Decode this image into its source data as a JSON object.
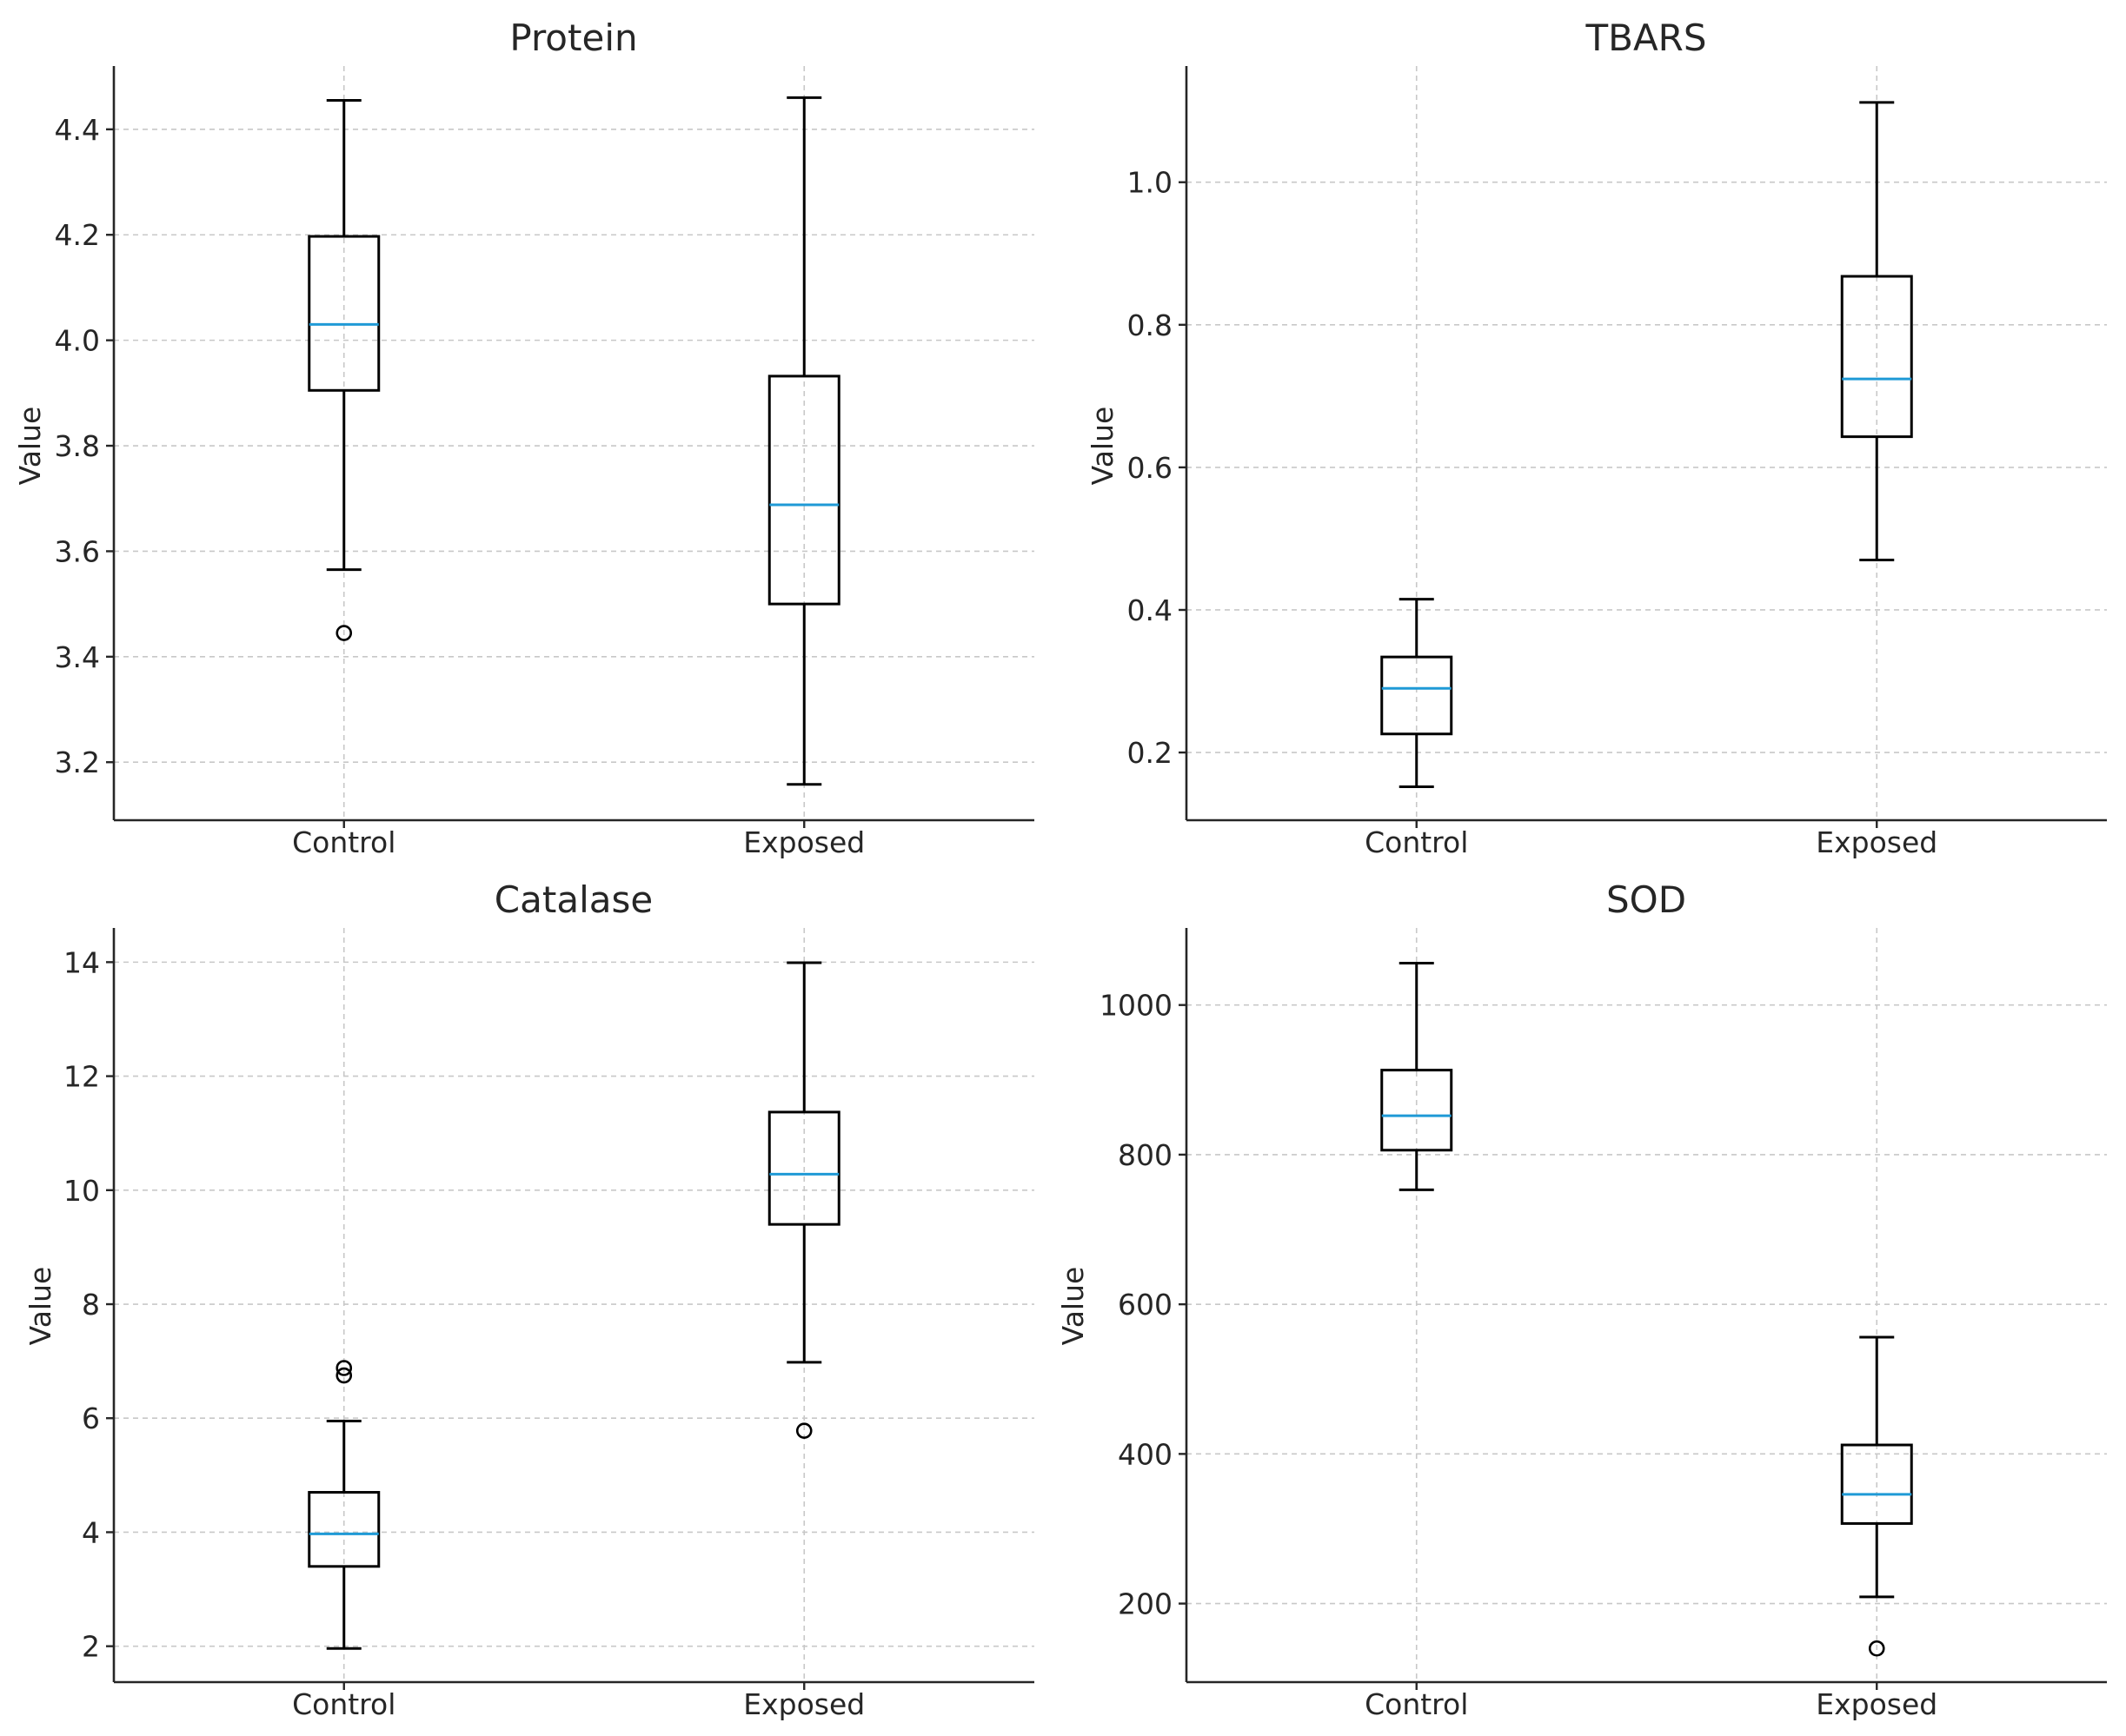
{
  "colors": {
    "median": "#1f9ad6",
    "box": "#000000",
    "grid": "#c8c8c8",
    "text": "#262626"
  },
  "chart_data": [
    {
      "type": "box",
      "title": "Protein",
      "xlabel": "",
      "ylabel": "Value",
      "categories": [
        "Control",
        "Exposed"
      ],
      "ylim": [
        3.09,
        4.52
      ],
      "yticks": [
        3.2,
        3.4,
        3.6,
        3.8,
        4.0,
        4.2,
        4.4
      ],
      "ytick_labels": [
        "3.2",
        "3.4",
        "3.6",
        "3.8",
        "4.0",
        "4.2",
        "4.4"
      ],
      "grid": true,
      "boxes": [
        {
          "category": "Control",
          "whisker_low": 3.565,
          "q1": 3.905,
          "median": 4.03,
          "q3": 4.197,
          "whisker_high": 4.455,
          "fliers": [
            3.445
          ]
        },
        {
          "category": "Exposed",
          "whisker_low": 3.158,
          "q1": 3.5,
          "median": 3.688,
          "q3": 3.932,
          "whisker_high": 4.46,
          "fliers": []
        }
      ]
    },
    {
      "type": "box",
      "title": "TBARS",
      "xlabel": "",
      "ylabel": "Value",
      "categories": [
        "Control",
        "Exposed"
      ],
      "ylim": [
        0.105,
        1.163
      ],
      "yticks": [
        0.2,
        0.4,
        0.6,
        0.8,
        1.0
      ],
      "ytick_labels": [
        "0.2",
        "0.4",
        "0.6",
        "0.8",
        "1.0"
      ],
      "grid": true,
      "boxes": [
        {
          "category": "Control",
          "whisker_low": 0.152,
          "q1": 0.226,
          "median": 0.29,
          "q3": 0.334,
          "whisker_high": 0.415,
          "fliers": []
        },
        {
          "category": "Exposed",
          "whisker_low": 0.47,
          "q1": 0.643,
          "median": 0.724,
          "q3": 0.868,
          "whisker_high": 1.112,
          "fliers": []
        }
      ]
    },
    {
      "type": "box",
      "title": "Catalase",
      "xlabel": "",
      "ylabel": "Value",
      "categories": [
        "Control",
        "Exposed"
      ],
      "ylim": [
        1.37,
        14.6
      ],
      "yticks": [
        2,
        4,
        6,
        8,
        10,
        12,
        14
      ],
      "ytick_labels": [
        "2",
        "4",
        "6",
        "8",
        "10",
        "12",
        "14"
      ],
      "grid": true,
      "boxes": [
        {
          "category": "Control",
          "whisker_low": 1.96,
          "q1": 3.4,
          "median": 3.97,
          "q3": 4.7,
          "whisker_high": 5.95,
          "fliers": [
            6.75,
            6.88
          ]
        },
        {
          "category": "Exposed",
          "whisker_low": 6.98,
          "q1": 9.4,
          "median": 10.28,
          "q3": 11.37,
          "whisker_high": 13.99,
          "fliers": [
            5.78
          ]
        }
      ]
    },
    {
      "type": "box",
      "title": "SOD",
      "xlabel": "",
      "ylabel": "Value",
      "categories": [
        "Control",
        "Exposed"
      ],
      "ylim": [
        95,
        1103
      ],
      "yticks": [
        200,
        400,
        600,
        800,
        1000
      ],
      "ytick_labels": [
        "200",
        "400",
        "600",
        "800",
        "1000"
      ],
      "grid": true,
      "boxes": [
        {
          "category": "Control",
          "whisker_low": 753,
          "q1": 806,
          "median": 852,
          "q3": 913,
          "whisker_high": 1056,
          "fliers": []
        },
        {
          "category": "Exposed",
          "whisker_low": 209,
          "q1": 307,
          "median": 346,
          "q3": 412,
          "whisker_high": 556,
          "fliers": [
            140
          ]
        }
      ]
    }
  ]
}
